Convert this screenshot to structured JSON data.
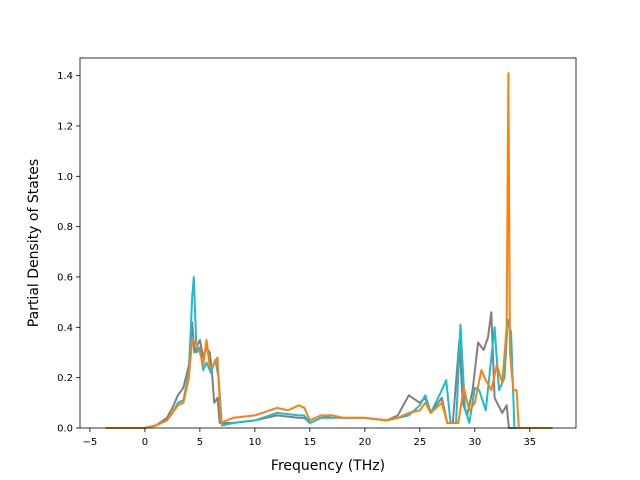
{
  "chart_data": {
    "type": "line",
    "title": "",
    "xlabel": "Frequency (THz)",
    "ylabel": "Partial Density of States",
    "xlim": [
      -5.9,
      39.2
    ],
    "ylim": [
      0,
      1.47
    ],
    "xticks": [
      -5,
      0,
      5,
      10,
      15,
      20,
      25,
      30,
      35
    ],
    "yticks": [
      0.0,
      0.2,
      0.4,
      0.6,
      0.8,
      1.0,
      1.2,
      1.4
    ],
    "xtick_labels": [
      "−5",
      "0",
      "5",
      "10",
      "15",
      "20",
      "25",
      "30",
      "35"
    ],
    "ytick_labels": [
      "0.0",
      "0.2",
      "0.4",
      "0.6",
      "0.8",
      "1.0",
      "1.2",
      "1.4"
    ],
    "grid": false,
    "legend": "none",
    "series": [
      {
        "color": "#7f7f7f",
        "points": [
          [
            -3.5,
            0
          ],
          [
            0,
            0
          ],
          [
            1,
            0.01
          ],
          [
            2,
            0.04
          ],
          [
            2.5,
            0.08
          ],
          [
            3,
            0.13
          ],
          [
            3.5,
            0.16
          ],
          [
            4,
            0.25
          ],
          [
            4.3,
            0.42
          ],
          [
            4.5,
            0.3
          ],
          [
            5,
            0.35
          ],
          [
            5.3,
            0.28
          ],
          [
            5.6,
            0.32
          ],
          [
            5.9,
            0.3
          ],
          [
            6.1,
            0.22
          ],
          [
            6.3,
            0.1
          ],
          [
            6.6,
            0.12
          ],
          [
            6.8,
            0.02
          ],
          [
            8,
            0.02
          ],
          [
            10,
            0.03
          ],
          [
            12,
            0.05
          ],
          [
            14,
            0.04
          ],
          [
            14.5,
            0.04
          ],
          [
            15,
            0.02
          ],
          [
            16,
            0.04
          ],
          [
            17,
            0.05
          ],
          [
            18,
            0.04
          ],
          [
            20,
            0.04
          ],
          [
            22,
            0.03
          ],
          [
            23,
            0.05
          ],
          [
            24,
            0.13
          ],
          [
            25,
            0.1
          ],
          [
            25.5,
            0.12
          ],
          [
            26,
            0.06
          ],
          [
            27,
            0.12
          ],
          [
            27.5,
            0.02
          ],
          [
            28,
            0.02
          ],
          [
            28.6,
            0.35
          ],
          [
            28.9,
            0.1
          ],
          [
            29.3,
            0.05
          ],
          [
            29.8,
            0.15
          ],
          [
            30.3,
            0.34
          ],
          [
            30.8,
            0.31
          ],
          [
            31.2,
            0.36
          ],
          [
            31.5,
            0.46
          ],
          [
            31.8,
            0.12
          ],
          [
            32.5,
            0.06
          ],
          [
            32.9,
            0.09
          ],
          [
            33.1,
            0
          ],
          [
            37,
            0
          ]
        ]
      },
      {
        "color": "#17becf",
        "points": [
          [
            -3.5,
            0
          ],
          [
            0,
            0
          ],
          [
            1,
            0.01
          ],
          [
            2,
            0.03
          ],
          [
            2.5,
            0.06
          ],
          [
            3,
            0.1
          ],
          [
            3.5,
            0.11
          ],
          [
            4,
            0.22
          ],
          [
            4.3,
            0.52
          ],
          [
            4.45,
            0.6
          ],
          [
            4.7,
            0.3
          ],
          [
            5,
            0.32
          ],
          [
            5.3,
            0.23
          ],
          [
            5.6,
            0.26
          ],
          [
            6,
            0.22
          ],
          [
            6.4,
            0.27
          ],
          [
            6.7,
            0.2
          ],
          [
            7,
            0.01
          ],
          [
            8,
            0.02
          ],
          [
            10,
            0.03
          ],
          [
            12,
            0.06
          ],
          [
            14,
            0.05
          ],
          [
            14.5,
            0.05
          ],
          [
            15,
            0.02
          ],
          [
            16,
            0.04
          ],
          [
            17,
            0.04
          ],
          [
            18,
            0.04
          ],
          [
            20,
            0.04
          ],
          [
            22,
            0.03
          ],
          [
            23,
            0.04
          ],
          [
            24,
            0.05
          ],
          [
            25,
            0.09
          ],
          [
            25.5,
            0.13
          ],
          [
            26,
            0.06
          ],
          [
            27,
            0.15
          ],
          [
            27.4,
            0.19
          ],
          [
            27.8,
            0.02
          ],
          [
            28.3,
            0.02
          ],
          [
            28.7,
            0.41
          ],
          [
            29.1,
            0.08
          ],
          [
            29.5,
            0.02
          ],
          [
            30,
            0.16
          ],
          [
            30.4,
            0.15
          ],
          [
            31,
            0.07
          ],
          [
            31.5,
            0.28
          ],
          [
            31.8,
            0.4
          ],
          [
            32.2,
            0.15
          ],
          [
            32.7,
            0.2
          ],
          [
            33,
            0.43
          ],
          [
            33.3,
            0.38
          ],
          [
            33.6,
            0
          ],
          [
            37,
            0
          ]
        ]
      },
      {
        "color": "#ff7f0e",
        "points": [
          [
            -3.5,
            0
          ],
          [
            0,
            0
          ],
          [
            1,
            0.01
          ],
          [
            2,
            0.03
          ],
          [
            2.5,
            0.06
          ],
          [
            3,
            0.09
          ],
          [
            3.5,
            0.1
          ],
          [
            4,
            0.2
          ],
          [
            4.3,
            0.35
          ],
          [
            4.6,
            0.34
          ],
          [
            5,
            0.3
          ],
          [
            5.3,
            0.25
          ],
          [
            5.6,
            0.35
          ],
          [
            5.9,
            0.24
          ],
          [
            6.2,
            0.25
          ],
          [
            6.6,
            0.28
          ],
          [
            6.9,
            0.02
          ],
          [
            8,
            0.04
          ],
          [
            10,
            0.05
          ],
          [
            12,
            0.08
          ],
          [
            13,
            0.07
          ],
          [
            14,
            0.09
          ],
          [
            14.5,
            0.08
          ],
          [
            15,
            0.03
          ],
          [
            16,
            0.05
          ],
          [
            17,
            0.05
          ],
          [
            18,
            0.04
          ],
          [
            20,
            0.04
          ],
          [
            22,
            0.03
          ],
          [
            23,
            0.04
          ],
          [
            24,
            0.06
          ],
          [
            25,
            0.07
          ],
          [
            25.5,
            0.1
          ],
          [
            26,
            0.06
          ],
          [
            27,
            0.1
          ],
          [
            27.5,
            0.02
          ],
          [
            28.5,
            0.02
          ],
          [
            29,
            0.16
          ],
          [
            29.5,
            0.07
          ],
          [
            30,
            0.1
          ],
          [
            30.6,
            0.23
          ],
          [
            31,
            0.19
          ],
          [
            31.5,
            0.15
          ],
          [
            32,
            0.25
          ],
          [
            32.5,
            0.18
          ],
          [
            32.9,
            0.4
          ],
          [
            33.05,
            1.41
          ],
          [
            33.2,
            0.3
          ],
          [
            33.5,
            0.15
          ],
          [
            33.8,
            0.15
          ],
          [
            34,
            0
          ],
          [
            37,
            0
          ]
        ]
      }
    ]
  }
}
